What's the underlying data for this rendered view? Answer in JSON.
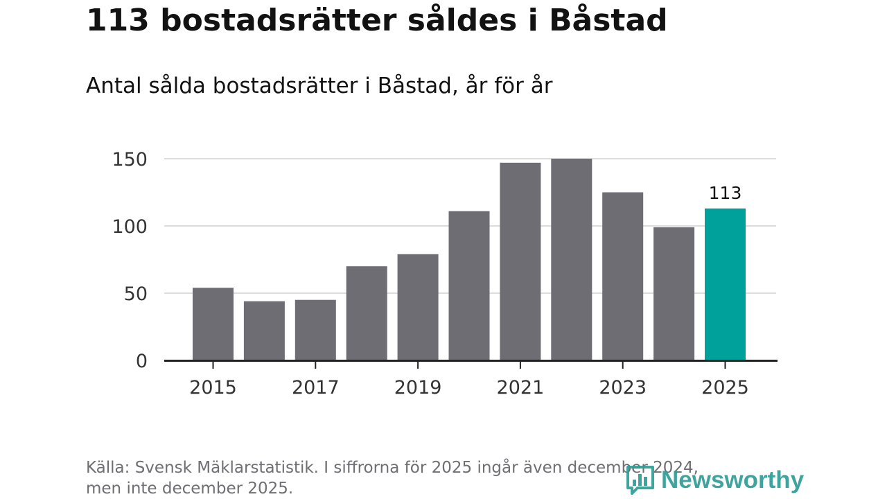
{
  "title": "113 bostadsrätter såldes i Båstad",
  "subtitle": "Antal sålda bostadsrätter i Båstad, år för år",
  "chart_data": {
    "type": "bar",
    "title": "113 bostadsrätter såldes i Båstad",
    "subtitle": "Antal sålda bostadsrätter i Båstad, år för år",
    "categories": [
      "2015",
      "2016",
      "2017",
      "2018",
      "2019",
      "2020",
      "2021",
      "2022",
      "2023",
      "2024",
      "2025"
    ],
    "values": [
      54,
      44,
      45,
      70,
      79,
      111,
      147,
      150,
      125,
      99,
      113
    ],
    "x_tick_labels": [
      "2015",
      "2017",
      "2019",
      "2021",
      "2023",
      "2025"
    ],
    "y_ticks": [
      0,
      50,
      100,
      150
    ],
    "ylim": [
      0,
      150
    ],
    "xlabel": "",
    "ylabel": "",
    "grid": true,
    "highlight": {
      "category": "2025",
      "label": "113"
    },
    "colors": {
      "bar": "#6e6d73",
      "highlight": "#00a19a",
      "grid": "#dcdcdc",
      "axis": "#222222",
      "tick_text": "#333333"
    }
  },
  "source": {
    "line1": "Källa: Svensk Mäklarstatistik. I siffrorna för 2025 ingår även december 2024,",
    "line2": "men inte december 2025."
  },
  "logo": {
    "text": "Newsworthy",
    "icon": "newsworthy-chart-icon",
    "color": "#2f9d96"
  }
}
